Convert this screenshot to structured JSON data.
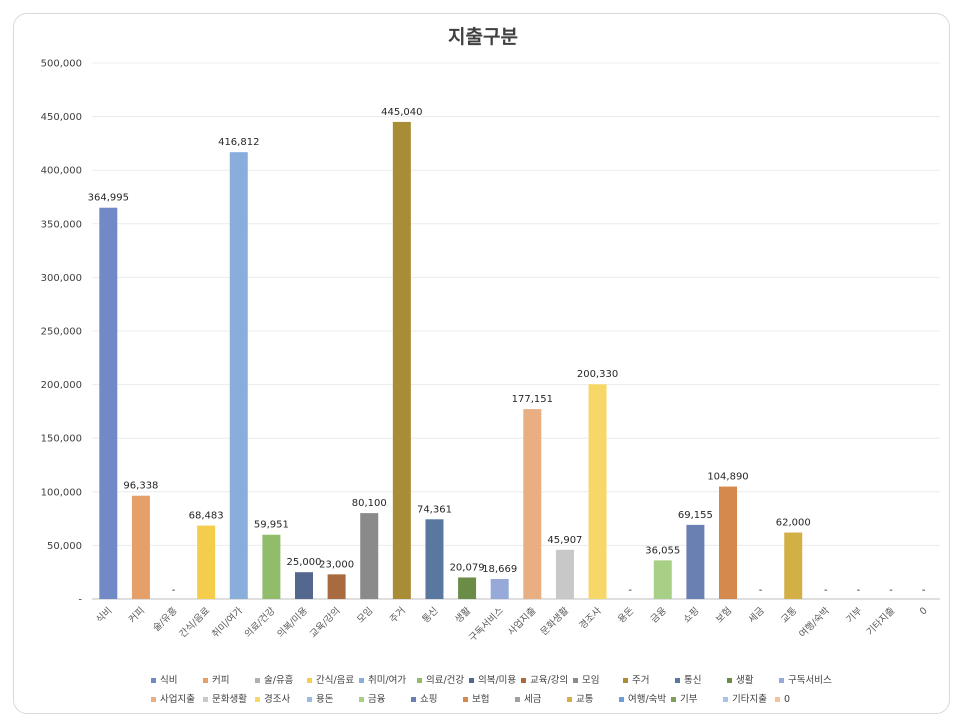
{
  "chart_data": {
    "type": "bar",
    "title": "지출구분",
    "ylim": [
      0,
      500000
    ],
    "yticks": [
      "-",
      "50,000",
      "100,000",
      "150,000",
      "200,000",
      "250,000",
      "300,000",
      "350,000",
      "400,000",
      "450,000",
      "500,000"
    ],
    "ytick_values": [
      0,
      50000,
      100000,
      150000,
      200000,
      250000,
      300000,
      350000,
      400000,
      450000,
      500000
    ],
    "grid": true,
    "legend_position": "bottom",
    "categories": [
      "식비",
      "커피",
      "술/유흥",
      "간식/음료",
      "취미/여가",
      "의료/건강",
      "의복/미용",
      "교육/강의",
      "모임",
      "주거",
      "통신",
      "생활",
      "구독서비스",
      "사업지출",
      "문화생활",
      "경조사",
      "용돈",
      "금융",
      "쇼핑",
      "보험",
      "세금",
      "교통",
      "여행/숙박",
      "기부",
      "기타지출",
      "0"
    ],
    "values": [
      364995,
      96338,
      0,
      68483,
      416812,
      59951,
      25000,
      23000,
      80100,
      445040,
      74361,
      20079,
      18669,
      177151,
      45907,
      200330,
      0,
      36055,
      69155,
      104890,
      0,
      62000,
      0,
      0,
      0,
      0
    ],
    "value_labels": [
      "364,995",
      "96,338",
      "-",
      "68,483",
      "416,812",
      "59,951",
      "25,000",
      "23,000",
      "80,100",
      "445,040",
      "74,361",
      "20,079",
      "18,669",
      "177,151",
      "45,907",
      "200,330",
      "-",
      "36,055",
      "69,155",
      "104,890",
      "-",
      "62,000",
      "-",
      "-",
      "-",
      "-"
    ],
    "colors": [
      "#7289c7",
      "#e59f69",
      "#b0b0b0",
      "#f5cd4c",
      "#8aaedc",
      "#91bc6a",
      "#54678f",
      "#a86b3f",
      "#8a8a8a",
      "#a88c36",
      "#5a77a0",
      "#6b8c46",
      "#96a9d8",
      "#eaae83",
      "#c8c8c8",
      "#f8d769",
      "#9dbbe1",
      "#a8cf86",
      "#6a7fb2",
      "#d6894c",
      "#a0a0a0",
      "#d2b045",
      "#6f9cd6",
      "#7f9b5d",
      "#a8c1e8",
      "#f0c29e"
    ]
  }
}
